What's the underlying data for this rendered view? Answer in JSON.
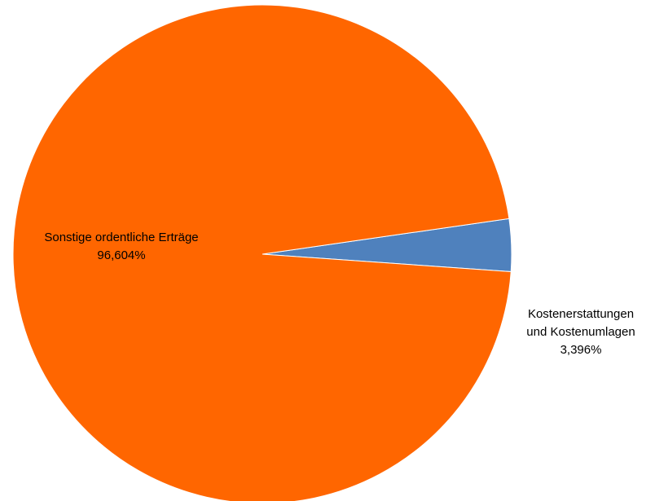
{
  "chart_data": {
    "type": "pie",
    "title": "",
    "slices": [
      {
        "label_lines": [
          "Kostenerstattungen",
          "und Kostenumlagen"
        ],
        "percent_text": "3,396%",
        "value": 3.396,
        "color": "#4F81BD"
      },
      {
        "label_lines": [
          "Sonstige ordentliche Erträge"
        ],
        "percent_text": "96,604%",
        "value": 96.604,
        "color": "#FF6600"
      }
    ],
    "start": "3 o'clock, counterclockwise for first slice",
    "legend": "none"
  }
}
